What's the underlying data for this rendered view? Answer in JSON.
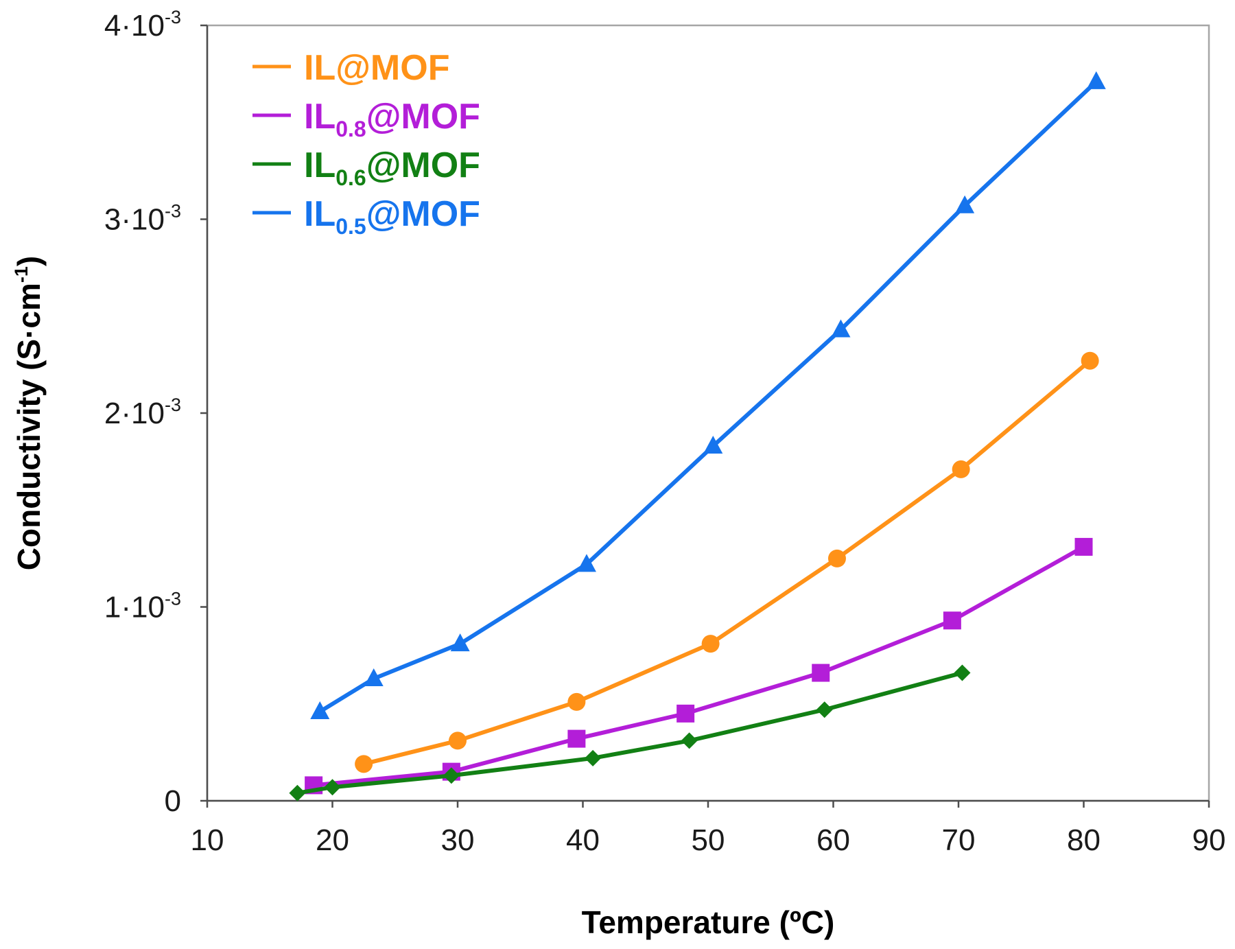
{
  "chart_data": {
    "type": "line",
    "xlabel": "Temperature (ºC)",
    "ylabel": "Conductivity (S·cm⁻¹)",
    "ylabel_parts": {
      "base": "Conductivity (S·cm",
      "sup": "-1",
      "tail": ")"
    },
    "xlim": [
      10,
      90
    ],
    "ylim": [
      0,
      0.004
    ],
    "grid": false,
    "legend_position": "top-left",
    "x_ticks": [
      {
        "value": 10,
        "label": "10"
      },
      {
        "value": 20,
        "label": "20"
      },
      {
        "value": 30,
        "label": "30"
      },
      {
        "value": 40,
        "label": "40"
      },
      {
        "value": 50,
        "label": "50"
      },
      {
        "value": 60,
        "label": "60"
      },
      {
        "value": 70,
        "label": "70"
      },
      {
        "value": 80,
        "label": "80"
      },
      {
        "value": 90,
        "label": "90"
      }
    ],
    "y_ticks": [
      {
        "value": 0,
        "mantissa": "0",
        "exp": ""
      },
      {
        "value": 0.001,
        "mantissa": "1·10",
        "exp": "-3"
      },
      {
        "value": 0.002,
        "mantissa": "2·10",
        "exp": "-3"
      },
      {
        "value": 0.003,
        "mantissa": "3·10",
        "exp": "-3"
      },
      {
        "value": 0.004,
        "mantissa": "4·10",
        "exp": "-3"
      }
    ],
    "series": [
      {
        "name": "IL@MOF",
        "name_base": "IL",
        "name_sub": "",
        "name_tail": "@MOF",
        "color": "#ff9218",
        "marker": "circle",
        "x": [
          22.5,
          30,
          39.5,
          50.2,
          60.3,
          70.2,
          80.5
        ],
        "y": [
          0.00019,
          0.00031,
          0.00051,
          0.00081,
          0.00125,
          0.00171,
          0.00227
        ]
      },
      {
        "name": "IL0.8@MOF",
        "name_base": "IL",
        "name_sub": "0.8",
        "name_tail": "@MOF",
        "color": "#b31ed8",
        "marker": "square",
        "x": [
          18.5,
          29.5,
          39.5,
          48.2,
          59,
          69.5,
          80
        ],
        "y": [
          8e-05,
          0.00015,
          0.00032,
          0.00045,
          0.00066,
          0.00093,
          0.00131
        ]
      },
      {
        "name": "IL0.6@MOF",
        "name_base": "IL",
        "name_sub": "0.6",
        "name_tail": "@MOF",
        "color": "#128014",
        "marker": "diamond",
        "x": [
          17.2,
          20,
          29.5,
          40.8,
          48.5,
          59.3,
          70.3
        ],
        "y": [
          4e-05,
          7e-05,
          0.00013,
          0.00022,
          0.00031,
          0.00047,
          0.00066
        ]
      },
      {
        "name": "IL0.5@MOF",
        "name_base": "IL",
        "name_sub": "0.5",
        "name_tail": "@MOF",
        "color": "#1674ed",
        "marker": "triangle",
        "x": [
          19,
          23.3,
          30.2,
          40.3,
          50.4,
          60.6,
          70.5,
          81
        ],
        "y": [
          0.00046,
          0.00063,
          0.00081,
          0.00122,
          0.00183,
          0.00243,
          0.00307,
          0.00371
        ]
      }
    ]
  }
}
